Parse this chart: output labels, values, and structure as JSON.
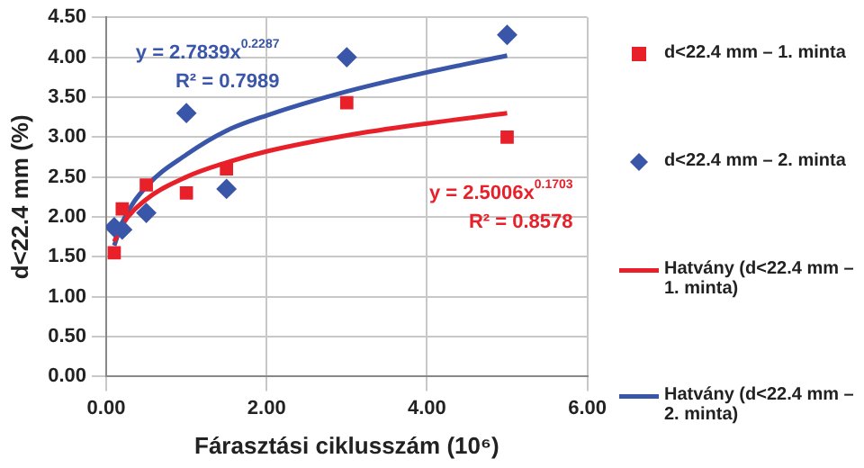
{
  "chart_data": {
    "type": "scatter",
    "xlabel": "Fárasztási ciklusszám (10⁶)",
    "ylabel": "d<22.4 mm (%)",
    "xlim": [
      0,
      6
    ],
    "xticks": [
      {
        "value": 0,
        "label": "0.00"
      },
      {
        "value": 2,
        "label": "2.00"
      },
      {
        "value": 4,
        "label": "4.00"
      },
      {
        "value": 6,
        "label": "6.00"
      }
    ],
    "ylim": [
      0,
      4.5
    ],
    "yticks": [
      {
        "value": 0,
        "label": "0.00"
      },
      {
        "value": 0.5,
        "label": "0.50"
      },
      {
        "value": 1,
        "label": "1.00"
      },
      {
        "value": 1.5,
        "label": "1.50"
      },
      {
        "value": 2,
        "label": "2.00"
      },
      {
        "value": 2.5,
        "label": "2.50"
      },
      {
        "value": 3,
        "label": "3.00"
      },
      {
        "value": 3.5,
        "label": "3.50"
      },
      {
        "value": 4,
        "label": "4.00"
      },
      {
        "value": 4.5,
        "label": "4.50"
      }
    ],
    "grid": true,
    "legend": "right",
    "series": [
      {
        "name": "d<22.4 mm – 1. minta",
        "type": "scatter",
        "marker": "square",
        "color": "#e8202a",
        "x": [
          0.1,
          0.2,
          0.5,
          1,
          1.5,
          3,
          5
        ],
        "values": [
          1.55,
          2.1,
          2.4,
          2.3,
          2.6,
          3.43,
          3.0
        ]
      },
      {
        "name": "d<22.4 mm – 2. minta",
        "type": "scatter",
        "marker": "diamond",
        "color": "#3a56a8",
        "x": [
          0.1,
          0.2,
          0.5,
          1,
          1.5,
          3,
          5
        ],
        "values": [
          1.87,
          1.84,
          2.05,
          3.3,
          2.35,
          4.0,
          4.28
        ]
      },
      {
        "name": "Hatvány (d<22.4 mm – 1. minta)",
        "type": "line",
        "marker": "none",
        "color": "#e8202a",
        "x": [
          0.1,
          0.2,
          0.5,
          1,
          1.5,
          2,
          3,
          4,
          5
        ],
        "values": [
          1.69,
          1.9,
          2.22,
          2.5,
          2.68,
          2.82,
          3.02,
          3.17,
          3.3
        ]
      },
      {
        "name": "Hatvány (d<22.4 mm – 2. minta)",
        "type": "line",
        "marker": "none",
        "color": "#3a56a8",
        "x": [
          0.1,
          0.2,
          0.5,
          1,
          1.5,
          2,
          3,
          4,
          5
        ],
        "values": [
          1.64,
          1.93,
          2.38,
          2.78,
          3.08,
          3.27,
          3.57,
          3.81,
          4.02
        ]
      }
    ],
    "annotations": [
      "y = 2.7839x$^{0.2287}$",
      "R² = 0.7989",
      "y = 2.5006x$^{0.1703}$",
      "R² = 0.8578"
    ]
  }
}
